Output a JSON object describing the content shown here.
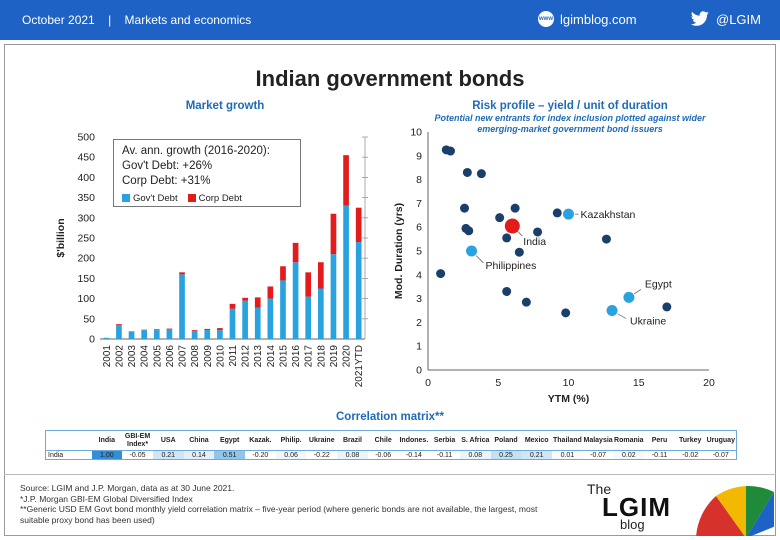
{
  "header": {
    "date": "October 2021",
    "separator": "|",
    "section": "Markets and economics",
    "web_icon_text": "www",
    "website": "lgimblog.com",
    "twitter": "@LGIM"
  },
  "title": "Indian government bonds",
  "chart_data": [
    {
      "type": "bar",
      "stacked": true,
      "title": "Market growth",
      "ylabel": "$'billion",
      "xlabel": "",
      "ylim": [
        0,
        500
      ],
      "yticks": [
        0,
        50,
        100,
        150,
        200,
        250,
        300,
        350,
        400,
        450,
        500
      ],
      "categories": [
        "2001",
        "2002",
        "2003",
        "2004",
        "2005",
        "2006",
        "2007",
        "2008",
        "2009",
        "2010",
        "2011",
        "2012",
        "2013",
        "2014",
        "2015",
        "2016",
        "2017",
        "2018",
        "2019",
        "2020",
        "2021YTD"
      ],
      "series": [
        {
          "name": "Gov't Debt",
          "color": "#29a3e0",
          "values": [
            3,
            35,
            18,
            22,
            22,
            25,
            160,
            20,
            22,
            22,
            75,
            95,
            78,
            100,
            145,
            190,
            105,
            125,
            210,
            330,
            240
          ]
        },
        {
          "name": "Corp Debt",
          "color": "#e21b1b",
          "values": [
            0,
            2,
            1,
            1,
            2,
            1,
            5,
            2,
            3,
            5,
            12,
            7,
            25,
            30,
            35,
            48,
            60,
            65,
            100,
            125,
            85
          ]
        }
      ],
      "annotation": {
        "heading": "Av. ann. growth (2016-2020):",
        "line1": "Gov't Debt: +26%",
        "line2": "Corp Debt: +31%"
      },
      "legend_placement": "inside top-left"
    },
    {
      "type": "scatter",
      "title": "Risk profile – yield / unit of duration",
      "subtitle_line1": "Potential new entrants for index inclusion plotted against wider",
      "subtitle_line2": "emerging-market government bond issuers",
      "xlabel": "YTM (%)",
      "ylabel": "Mod. Duration (yrs)",
      "xlim": [
        0,
        20
      ],
      "ylim": [
        0,
        10
      ],
      "xticks": [
        0,
        5,
        10,
        15,
        20
      ],
      "yticks": [
        0,
        1,
        2,
        3,
        4,
        5,
        6,
        7,
        8,
        9,
        10
      ],
      "grid": false,
      "colors": {
        "base": "#1a3f6b",
        "highlight": "#29a3e0",
        "india": "#e21b1b"
      },
      "points": [
        {
          "x": 1.3,
          "y": 9.25
        },
        {
          "x": 1.6,
          "y": 9.2
        },
        {
          "x": 2.8,
          "y": 8.3
        },
        {
          "x": 3.8,
          "y": 8.25
        },
        {
          "x": 2.6,
          "y": 6.8
        },
        {
          "x": 5.1,
          "y": 6.4
        },
        {
          "x": 6.2,
          "y": 6.8
        },
        {
          "x": 9.2,
          "y": 6.6
        },
        {
          "x": 2.7,
          "y": 5.95
        },
        {
          "x": 2.9,
          "y": 5.85
        },
        {
          "x": 5.6,
          "y": 5.55
        },
        {
          "x": 7.8,
          "y": 5.8
        },
        {
          "x": 6.5,
          "y": 4.95
        },
        {
          "x": 12.7,
          "y": 5.5
        },
        {
          "x": 0.9,
          "y": 4.05
        },
        {
          "x": 5.6,
          "y": 3.3
        },
        {
          "x": 7.0,
          "y": 2.85
        },
        {
          "x": 9.8,
          "y": 2.4
        },
        {
          "x": 17.0,
          "y": 2.65
        }
      ],
      "highlighted": [
        {
          "label": "Kazakhstan",
          "x": 10.0,
          "y": 6.55
        },
        {
          "label": "Philippines",
          "x": 3.1,
          "y": 5.0
        },
        {
          "label": "Egypt",
          "x": 14.3,
          "y": 3.05
        },
        {
          "label": "Ukraine",
          "x": 13.1,
          "y": 2.5
        }
      ],
      "india": {
        "label": "India",
        "x": 6.0,
        "y": 6.05
      }
    }
  ],
  "correlation": {
    "title": "Correlation matrix**",
    "headers": [
      "",
      "India",
      "GBI-EM Index*",
      "USA",
      "China",
      "Egypt",
      "Kazak.",
      "Philip.",
      "Ukraine",
      "Brazil",
      "Chile",
      "Indones.",
      "Serbia",
      "S. Africa",
      "Poland",
      "Mexico",
      "Thailand",
      "Malaysia",
      "Romania",
      "Peru",
      "Turkey",
      "Uruguay"
    ],
    "row_label": "India",
    "values": [
      "1.00",
      "-0.05",
      "0.21",
      "0.14",
      "0.51",
      "-0.20",
      "0.06",
      "-0.22",
      "0.08",
      "-0.06",
      "-0.14",
      "-0.11",
      "0.08",
      "0.25",
      "0.21",
      "0.01",
      "-0.07",
      "0.02",
      "-0.11",
      "-0.02",
      "-0.07"
    ],
    "shading": [
      "#2f8fd8",
      "#ffffff",
      "#cfe6f6",
      "#e3f0fa",
      "#8fc6ea",
      "#ffffff",
      "#f0f7fc",
      "#ffffff",
      "#eaf4fb",
      "#ffffff",
      "#ffffff",
      "#ffffff",
      "#eaf4fb",
      "#c4e1f4",
      "#cfe6f6",
      "#f7fbfe",
      "#ffffff",
      "#f4f9fd",
      "#ffffff",
      "#ffffff",
      "#ffffff"
    ]
  },
  "footnotes": {
    "line1": "Source: LGIM and J.P. Morgan, data as at 30 June 2021.",
    "line2": "*J.P. Morgan GBI-EM  Global Diversified Index",
    "line3": "**Generic USD EM  Govt bond monthly yield correlation matrix – five-year period (where generic bonds are not available, the largest, most",
    "line4": "suitable proxy bond has been used)"
  },
  "logo": {
    "the": "The",
    "name": "LGIM",
    "blog": "blog"
  }
}
